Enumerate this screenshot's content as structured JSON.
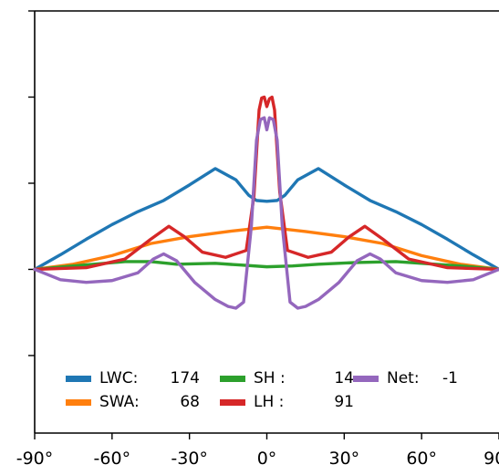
{
  "chart_data": {
    "type": "line",
    "title": "",
    "xlabel": "",
    "ylabel": "",
    "x_ticks": [
      -90,
      -60,
      -30,
      0,
      30,
      60,
      90
    ],
    "x_tick_labels": [
      "-90°",
      "-60°",
      "-30°",
      "0°",
      "30°",
      "60°",
      "90°"
    ],
    "xlim": [
      -90,
      90
    ],
    "ylim": [
      -1.9,
      3.0
    ],
    "y_ticks": [
      -1,
      0,
      1,
      2,
      3
    ],
    "grid": false,
    "legend_position": "bottom",
    "series": [
      {
        "name": "LWC",
        "legend_value": "174",
        "color": "#1f77b4",
        "points": [
          [
            -90,
            0
          ],
          [
            -80,
            0.17
          ],
          [
            -70,
            0.35
          ],
          [
            -60,
            0.52
          ],
          [
            -50,
            0.67
          ],
          [
            -40,
            0.8
          ],
          [
            -30,
            0.98
          ],
          [
            -20,
            1.17
          ],
          [
            -12,
            1.04
          ],
          [
            -7,
            0.86
          ],
          [
            -4,
            0.8
          ],
          [
            0,
            0.79
          ],
          [
            4,
            0.8
          ],
          [
            7,
            0.86
          ],
          [
            12,
            1.04
          ],
          [
            20,
            1.17
          ],
          [
            30,
            0.98
          ],
          [
            40,
            0.8
          ],
          [
            50,
            0.67
          ],
          [
            60,
            0.52
          ],
          [
            70,
            0.35
          ],
          [
            80,
            0.17
          ],
          [
            90,
            0
          ]
        ]
      },
      {
        "name": "SWA",
        "legend_value": "68",
        "color": "#ff7f0e",
        "points": [
          [
            -90,
            0
          ],
          [
            -75,
            0.06
          ],
          [
            -60,
            0.16
          ],
          [
            -45,
            0.3
          ],
          [
            -30,
            0.38
          ],
          [
            -15,
            0.44
          ],
          [
            0,
            0.49
          ],
          [
            15,
            0.44
          ],
          [
            30,
            0.38
          ],
          [
            45,
            0.3
          ],
          [
            60,
            0.16
          ],
          [
            75,
            0.06
          ],
          [
            90,
            0
          ]
        ]
      },
      {
        "name": "SH",
        "legend_value": "14",
        "color": "#2ca02c",
        "points": [
          [
            -90,
            0
          ],
          [
            -75,
            0.04
          ],
          [
            -55,
            0.09
          ],
          [
            -45,
            0.09
          ],
          [
            -35,
            0.06
          ],
          [
            -20,
            0.07
          ],
          [
            -10,
            0.05
          ],
          [
            0,
            0.03
          ],
          [
            10,
            0.04
          ],
          [
            20,
            0.06
          ],
          [
            35,
            0.08
          ],
          [
            50,
            0.09
          ],
          [
            60,
            0.07
          ],
          [
            75,
            0.04
          ],
          [
            90,
            0
          ]
        ]
      },
      {
        "name": "LH",
        "legend_value": "91",
        "color": "#d62728",
        "points": [
          [
            -90,
            0
          ],
          [
            -70,
            0.02
          ],
          [
            -55,
            0.12
          ],
          [
            -45,
            0.35
          ],
          [
            -38,
            0.5
          ],
          [
            -32,
            0.38
          ],
          [
            -25,
            0.2
          ],
          [
            -16,
            0.14
          ],
          [
            -8,
            0.22
          ],
          [
            -5,
            0.85
          ],
          [
            -3,
            1.85
          ],
          [
            -2,
            1.99
          ],
          [
            -1,
            2.0
          ],
          [
            0,
            1.89
          ],
          [
            1,
            1.98
          ],
          [
            2,
            2.0
          ],
          [
            3,
            1.85
          ],
          [
            5,
            0.9
          ],
          [
            8,
            0.22
          ],
          [
            16,
            0.14
          ],
          [
            25,
            0.2
          ],
          [
            32,
            0.38
          ],
          [
            38,
            0.5
          ],
          [
            45,
            0.35
          ],
          [
            55,
            0.12
          ],
          [
            70,
            0.02
          ],
          [
            90,
            0
          ]
        ]
      },
      {
        "name": "Net",
        "legend_value": "-1",
        "color": "#9467bd",
        "points": [
          [
            -90,
            0
          ],
          [
            -80,
            -0.12
          ],
          [
            -70,
            -0.15
          ],
          [
            -60,
            -0.13
          ],
          [
            -50,
            -0.04
          ],
          [
            -44,
            0.12
          ],
          [
            -40,
            0.18
          ],
          [
            -35,
            0.1
          ],
          [
            -28,
            -0.15
          ],
          [
            -20,
            -0.35
          ],
          [
            -15,
            -0.43
          ],
          [
            -12,
            -0.45
          ],
          [
            -9,
            -0.38
          ],
          [
            -6,
            0.5
          ],
          [
            -4,
            1.5
          ],
          [
            -2.5,
            1.74
          ],
          [
            -1,
            1.76
          ],
          [
            0,
            1.62
          ],
          [
            1,
            1.76
          ],
          [
            2.5,
            1.74
          ],
          [
            4,
            1.5
          ],
          [
            6,
            0.5
          ],
          [
            9,
            -0.38
          ],
          [
            12,
            -0.45
          ],
          [
            15,
            -0.43
          ],
          [
            20,
            -0.35
          ],
          [
            28,
            -0.15
          ],
          [
            35,
            0.1
          ],
          [
            40,
            0.18
          ],
          [
            44,
            0.12
          ],
          [
            50,
            -0.04
          ],
          [
            60,
            -0.13
          ],
          [
            70,
            -0.15
          ],
          [
            80,
            -0.12
          ],
          [
            90,
            0
          ]
        ]
      }
    ],
    "legend_rows": [
      [
        {
          "label": "LWC:",
          "value": "174",
          "color": "#1f77b4"
        },
        {
          "label": "SH :",
          "value": "14",
          "color": "#2ca02c"
        },
        {
          "label": "Net:",
          "value": "-1",
          "color": "#9467bd"
        }
      ],
      [
        {
          "label": "SWA:",
          "value": "68",
          "color": "#ff7f0e"
        },
        {
          "label": "LH :",
          "value": "91",
          "color": "#d62728"
        }
      ]
    ]
  }
}
